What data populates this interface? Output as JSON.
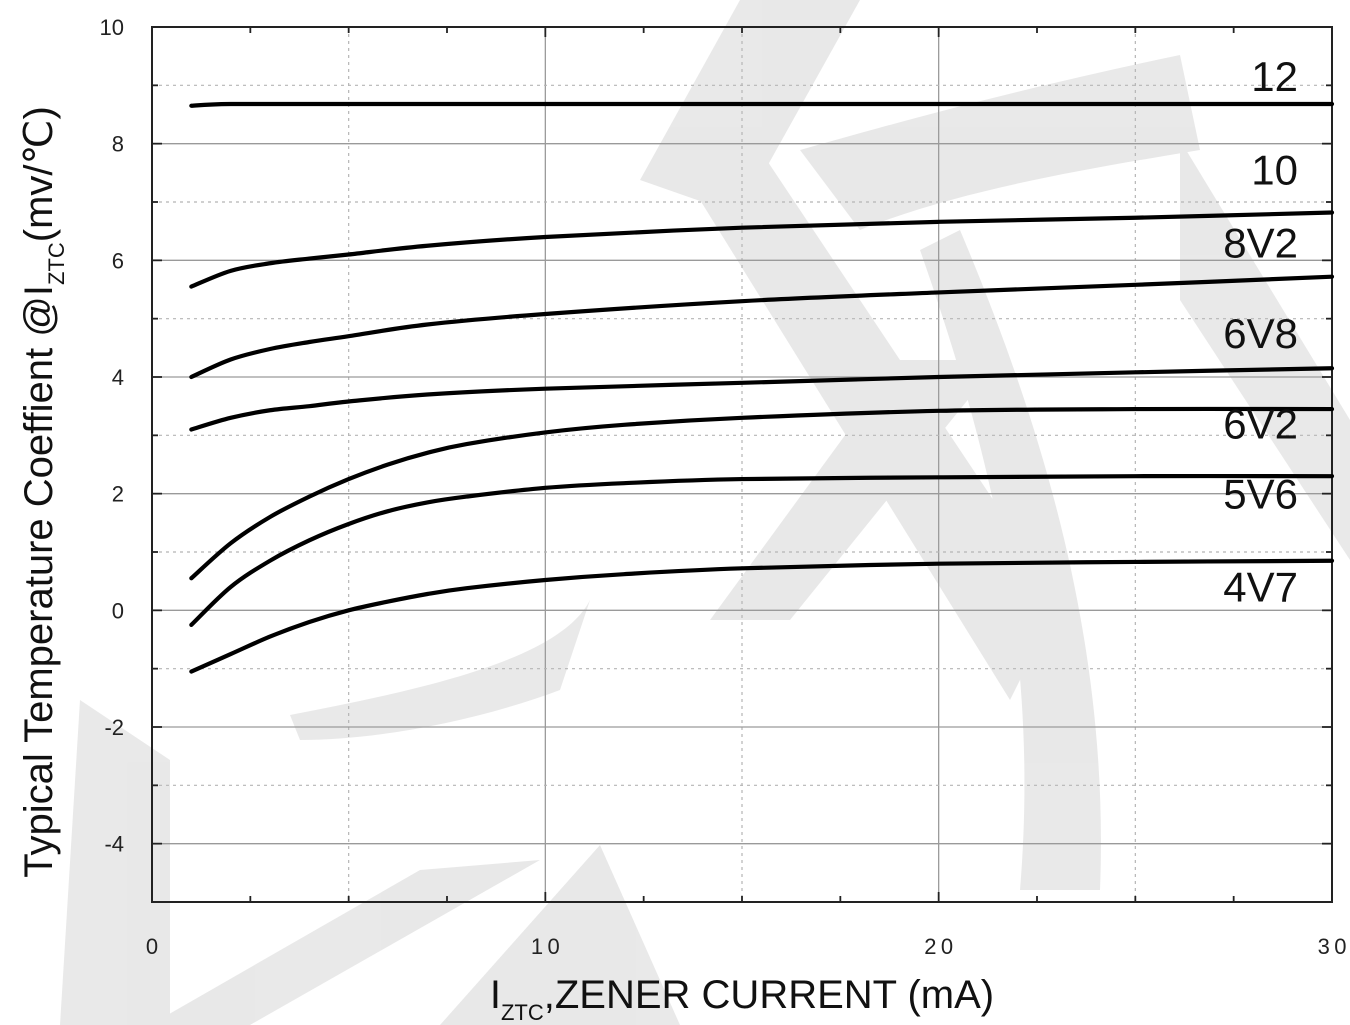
{
  "chart_data": {
    "type": "line",
    "title": "",
    "xlabel": {
      "prefix": "I",
      "subscript": "ZTC",
      "suffix": ",ZENER CURRENT (mA)"
    },
    "ylabel": {
      "prefix": "Typical Temperature Coeffient @I",
      "subscript": "ZTC",
      "suffix": "(mv/℃)"
    },
    "xlim": [
      0,
      30
    ],
    "ylim": [
      -5,
      10
    ],
    "x_ticks": [
      0,
      10,
      20,
      30
    ],
    "y_ticks": [
      -4,
      -2,
      0,
      2,
      4,
      6,
      8,
      10
    ],
    "grid": true,
    "legend": "inline labels at right",
    "watermark": "乐天",
    "series": [
      {
        "name": "12",
        "x": [
          1,
          2,
          5,
          10,
          15,
          20,
          25,
          30
        ],
        "y": [
          8.65,
          8.68,
          8.68,
          8.68,
          8.68,
          8.68,
          8.68,
          8.68
        ]
      },
      {
        "name": "10",
        "x": [
          1,
          2,
          3,
          4,
          5,
          7,
          10,
          15,
          20,
          25,
          30
        ],
        "y": [
          5.55,
          5.82,
          5.95,
          6.03,
          6.1,
          6.25,
          6.4,
          6.56,
          6.66,
          6.73,
          6.82
        ]
      },
      {
        "name": "8V2",
        "x": [
          1,
          2,
          3,
          4,
          5,
          7,
          10,
          15,
          20,
          25,
          30
        ],
        "y": [
          4.0,
          4.3,
          4.48,
          4.6,
          4.7,
          4.9,
          5.08,
          5.3,
          5.45,
          5.58,
          5.72
        ]
      },
      {
        "name": "6V8",
        "x": [
          1,
          2,
          3,
          4,
          5,
          7,
          10,
          15,
          20,
          25,
          30
        ],
        "y": [
          3.1,
          3.3,
          3.43,
          3.5,
          3.58,
          3.7,
          3.8,
          3.9,
          4.0,
          4.08,
          4.15
        ]
      },
      {
        "name": "6V2",
        "x": [
          1,
          2,
          3,
          4,
          5,
          6,
          7,
          8,
          10,
          12,
          15,
          20,
          25,
          30
        ],
        "y": [
          0.55,
          1.15,
          1.6,
          1.95,
          2.25,
          2.5,
          2.7,
          2.85,
          3.05,
          3.18,
          3.3,
          3.42,
          3.45,
          3.45
        ]
      },
      {
        "name": "5V6",
        "x": [
          1,
          2,
          3,
          4,
          5,
          6,
          7,
          8,
          10,
          12,
          15,
          20,
          25,
          30
        ],
        "y": [
          -0.25,
          0.4,
          0.85,
          1.2,
          1.48,
          1.7,
          1.85,
          1.95,
          2.1,
          2.18,
          2.25,
          2.28,
          2.3,
          2.3
        ]
      },
      {
        "name": "4V7",
        "x": [
          1,
          2,
          3,
          4,
          5,
          6,
          7,
          8,
          10,
          12,
          15,
          20,
          25,
          30
        ],
        "y": [
          -1.05,
          -0.75,
          -0.45,
          -0.2,
          0.0,
          0.15,
          0.28,
          0.38,
          0.52,
          0.62,
          0.72,
          0.8,
          0.83,
          0.85
        ]
      }
    ]
  }
}
